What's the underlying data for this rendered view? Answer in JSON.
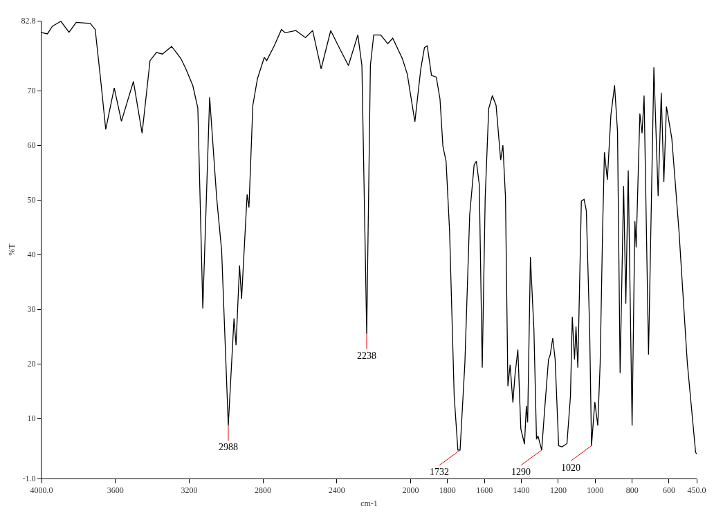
{
  "chart_data": {
    "type": "line",
    "xlabel": "cm-1",
    "ylabel": "%T",
    "xlim": [
      4000,
      450
    ],
    "ylim": [
      -1,
      82.8
    ],
    "xticks": [
      {
        "value": 4000,
        "label": "4000.0"
      },
      3600,
      3200,
      2800,
      2400,
      2000,
      1800,
      1600,
      1400,
      1200,
      1000,
      800,
      600,
      {
        "value": 450,
        "label": "450.0"
      }
    ],
    "yticks": [
      {
        "value": -1,
        "label": "-1.0"
      },
      10,
      20,
      30,
      40,
      50,
      60,
      70,
      {
        "value": 82.8,
        "label": "82.8"
      }
    ],
    "marker": "none",
    "line_style": "solid",
    "series": [
      {
        "color": "#000000",
        "x": [
          4000,
          3995,
          3968,
          3941,
          3895,
          3851,
          3812,
          3736,
          3709,
          3678,
          3652,
          3606,
          3567,
          3502,
          3455,
          3412,
          3377,
          3345,
          3295,
          3245,
          3218,
          3180,
          3153,
          3126,
          3089,
          3051,
          3024,
          2988,
          2957,
          2946,
          2927,
          2916,
          2886,
          2876,
          2855,
          2830,
          2793,
          2780,
          2739,
          2700,
          2680,
          2622,
          2570,
          2531,
          2485,
          2433,
          2383,
          2337,
          2286,
          2264,
          2238,
          2218,
          2200,
          2162,
          2124,
          2097,
          2044,
          2018,
          1977,
          1945,
          1925,
          1910,
          1887,
          1861,
          1841,
          1825,
          1808,
          1789,
          1764,
          1744,
          1732,
          1706,
          1680,
          1656,
          1644,
          1628,
          1612,
          1596,
          1577,
          1557,
          1537,
          1512,
          1500,
          1486,
          1473,
          1461,
          1446,
          1435,
          1419,
          1403,
          1383,
          1373,
          1366,
          1351,
          1332,
          1318,
          1310,
          1290,
          1275,
          1253,
          1244,
          1230,
          1217,
          1198,
          1180,
          1153,
          1134,
          1124,
          1112,
          1104,
          1094,
          1075,
          1060,
          1048,
          1030,
          1020,
          1002,
          986,
          973,
          960,
          950,
          934,
          915,
          895,
          879,
          865,
          846,
          834,
          821,
          800,
          785,
          778,
          758,
          746,
          735,
          711,
          682,
          659,
          642,
          628,
          614,
          585,
          546,
          501,
          456,
          450
        ],
        "values": [
          80.6,
          80.6,
          80.4,
          81.8,
          82.7,
          80.7,
          82.5,
          82.3,
          81.2,
          71.5,
          62.9,
          70.5,
          64.4,
          71.7,
          62.2,
          75.5,
          77,
          76.7,
          78.1,
          75.9,
          74,
          70.9,
          66.8,
          30.1,
          68.8,
          50.4,
          40.7,
          8.7,
          28.3,
          23.4,
          38,
          31.9,
          51,
          48.6,
          67.3,
          72.2,
          76.1,
          75.5,
          78.2,
          81.2,
          80.6,
          81,
          79.7,
          81,
          74,
          81,
          77.6,
          74.6,
          80.2,
          74.6,
          25.5,
          74.6,
          80.2,
          80.2,
          78.6,
          79.6,
          75.8,
          73,
          64.3,
          74,
          77.9,
          78.2,
          72.8,
          72.5,
          68.5,
          59.8,
          57.1,
          44.3,
          14.1,
          4.2,
          4.2,
          20.2,
          47.3,
          56.4,
          57.1,
          52.8,
          19.3,
          50.4,
          66.7,
          69.1,
          67.3,
          57.3,
          60,
          50.4,
          15.9,
          19.8,
          12.9,
          17.8,
          22.6,
          8.1,
          5.3,
          12.3,
          9.3,
          39.5,
          26.2,
          6.2,
          6.8,
          4.2,
          11.1,
          20.8,
          21.6,
          24.7,
          20.8,
          5,
          4.8,
          5.4,
          14.1,
          28.6,
          20.8,
          26.8,
          19.3,
          49.8,
          50.1,
          48,
          26.2,
          5,
          13,
          8.7,
          20.2,
          44.3,
          58.7,
          53.7,
          65.5,
          71,
          62.5,
          18.3,
          52.5,
          31,
          55.4,
          8.7,
          46.1,
          41.3,
          65.8,
          62.2,
          69.1,
          21.7,
          74.3,
          50.7,
          69.6,
          53.3,
          67.1,
          61.3,
          44.3,
          20.2,
          3.8,
          3.5
        ]
      }
    ],
    "annotations": [
      {
        "text": "2988",
        "x": 2988,
        "y": 8.7
      },
      {
        "text": "2238",
        "x": 2238,
        "y": 25.5
      },
      {
        "text": "1732",
        "x": 1732,
        "y": 4.2
      },
      {
        "text": "1290",
        "x": 1290,
        "y": 4.2
      },
      {
        "text": "1020",
        "x": 1020,
        "y": 5
      }
    ]
  }
}
